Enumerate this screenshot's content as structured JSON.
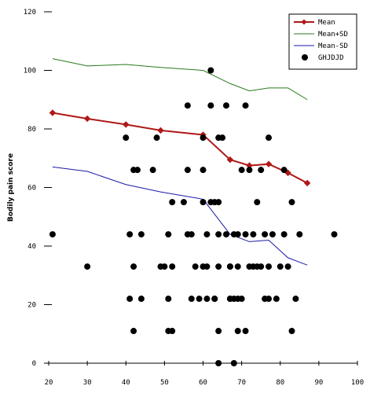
{
  "chart_data": {
    "type": "scatter",
    "title": "",
    "xlabel": "",
    "ylabel": "Bodily pain score",
    "xlim": [
      20,
      100
    ],
    "ylim": [
      0,
      120
    ],
    "x_ticks": [
      20,
      30,
      40,
      50,
      60,
      70,
      80,
      90,
      100
    ],
    "y_ticks": [
      0,
      20,
      40,
      60,
      80,
      100,
      120
    ],
    "x_tick_labels": [
      "20",
      "30",
      "40",
      "50",
      "60",
      "70",
      "80",
      "90",
      "100"
    ],
    "y_tick_labels": [
      "0",
      "20",
      "40",
      "60",
      "80",
      "100",
      "120"
    ],
    "grid": false,
    "legend_position": "top-right",
    "colors": {
      "mean": "#b01818",
      "mean_plus_sd": "#2a7a1e",
      "mean_minus_sd": "#1a1aa8",
      "points": "#000000"
    },
    "series": [
      {
        "name": "Mean",
        "kind": "line-marker",
        "x": [
          21,
          30,
          40,
          49,
          60,
          67,
          72,
          77,
          82,
          87
        ],
        "y": [
          85.5,
          83.5,
          81.5,
          79.5,
          78,
          69.5,
          67.5,
          68,
          65,
          61.5
        ]
      },
      {
        "name": "Mean+SD",
        "kind": "line",
        "x": [
          21,
          30,
          40,
          49,
          60,
          67,
          72,
          77,
          82,
          87
        ],
        "y": [
          104,
          101.5,
          102,
          101,
          100,
          95.5,
          93,
          94,
          94,
          90
        ]
      },
      {
        "name": "Mean-SD",
        "kind": "line",
        "x": [
          21,
          30,
          40,
          49,
          60,
          67,
          72,
          77,
          82,
          87
        ],
        "y": [
          67,
          65.5,
          61,
          58.5,
          56,
          44,
          41.5,
          42,
          36,
          33.5
        ]
      },
      {
        "name": "GHJDJD",
        "kind": "points",
        "x": [
          21,
          30,
          40,
          41,
          41,
          42,
          42,
          42,
          43,
          44,
          44,
          47,
          48,
          49,
          50,
          51,
          51,
          51,
          52,
          52,
          52,
          55,
          56,
          56,
          56,
          57,
          57,
          58,
          59,
          60,
          60,
          60,
          60,
          61,
          61,
          61,
          62,
          62,
          62,
          63,
          63,
          63,
          64,
          64,
          64,
          64,
          64,
          64,
          65,
          66,
          66,
          67,
          67,
          67,
          67,
          68,
          68,
          68,
          69,
          69,
          69,
          69,
          70,
          70,
          71,
          71,
          71,
          72,
          72,
          73,
          73,
          74,
          74,
          75,
          75,
          76,
          76,
          77,
          77,
          77,
          78,
          79,
          80,
          81,
          81,
          82,
          83,
          83,
          84,
          85,
          94
        ],
        "y": [
          44,
          33,
          77,
          44,
          22,
          11,
          66,
          33,
          66,
          44,
          22,
          66,
          77,
          33,
          33,
          44,
          22,
          11,
          33,
          55,
          11,
          55,
          66,
          88,
          44,
          22,
          44,
          33,
          22,
          77,
          55,
          66,
          33,
          22,
          33,
          44,
          100,
          88,
          55,
          55,
          22,
          22,
          77,
          44,
          0,
          11,
          33,
          55,
          77,
          88,
          44,
          22,
          33,
          22,
          33,
          44,
          22,
          0,
          22,
          44,
          11,
          33,
          66,
          22,
          88,
          44,
          11,
          66,
          33,
          33,
          44,
          55,
          33,
          33,
          66,
          44,
          22,
          77,
          33,
          22,
          44,
          22,
          33,
          44,
          66,
          33,
          55,
          11,
          22,
          44,
          44
        ]
      }
    ]
  }
}
